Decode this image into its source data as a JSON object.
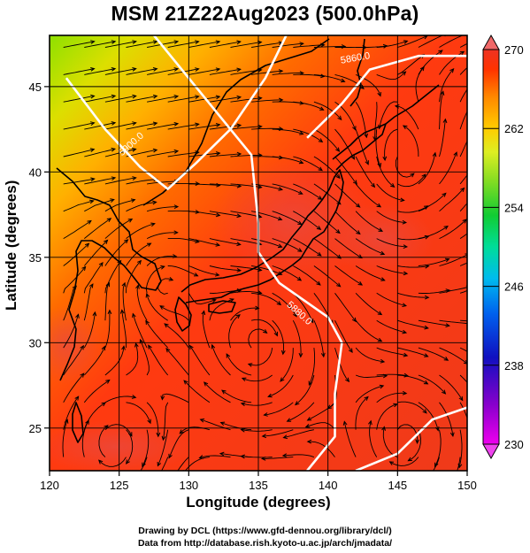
{
  "title": "MSM 21Z22Aug2023 (500.0hPa)",
  "x_axis": {
    "label": "Longitude (degrees)",
    "range": [
      120,
      150
    ],
    "ticks": [
      {
        "value": 120,
        "label": "120"
      },
      {
        "value": 125,
        "label": "125"
      },
      {
        "value": 130,
        "label": "130"
      },
      {
        "value": 135,
        "label": "135"
      },
      {
        "value": 140,
        "label": "140"
      },
      {
        "value": 145,
        "label": "145"
      },
      {
        "value": 150,
        "label": "150"
      }
    ]
  },
  "y_axis": {
    "label": "Latitude  (degrees)",
    "range": [
      22.5,
      48
    ],
    "ticks": [
      {
        "value": 25,
        "label": "25"
      },
      {
        "value": 30,
        "label": "30"
      },
      {
        "value": 35,
        "label": "35"
      },
      {
        "value": 40,
        "label": "40"
      },
      {
        "value": 45,
        "label": "45"
      }
    ]
  },
  "colorbar": {
    "range": [
      230,
      270
    ],
    "ticks": [
      {
        "value": 270,
        "label": "270"
      },
      {
        "value": 262,
        "label": "262"
      },
      {
        "value": 254,
        "label": "254"
      },
      {
        "value": 246,
        "label": "246"
      },
      {
        "value": 238,
        "label": "238"
      },
      {
        "value": 230,
        "label": "230"
      }
    ],
    "colors": [
      "#ee00ee",
      "#7700cc",
      "#1111cc",
      "#0055ee",
      "#00aaee",
      "#00ddaa",
      "#11cc44",
      "#77dd22",
      "#ccee22",
      "#ffcc00",
      "#ff8800",
      "#ff3300",
      "#ee3322"
    ]
  },
  "contours": [
    {
      "label": "5900.0",
      "path": [
        [
          121.2,
          45.5
        ],
        [
          124,
          42.5
        ],
        [
          126.5,
          40.3
        ],
        [
          128.5,
          39
        ],
        [
          130.5,
          40.5
        ],
        [
          133,
          42.5
        ],
        [
          135.5,
          45.5
        ],
        [
          137,
          48
        ]
      ]
    },
    {
      "label": "5880.0",
      "path": [
        [
          127.5,
          48
        ],
        [
          131.5,
          44
        ],
        [
          134.5,
          41
        ],
        [
          135,
          37
        ],
        [
          135,
          35.3
        ],
        [
          136.5,
          33.5
        ],
        [
          140,
          31.5
        ],
        [
          141,
          30
        ],
        [
          140.5,
          27
        ],
        [
          140.5,
          24.5
        ],
        [
          138.5,
          22.5
        ]
      ]
    },
    {
      "label": "5860.0",
      "path": [
        [
          138.5,
          42
        ],
        [
          141,
          44
        ],
        [
          143,
          46
        ],
        [
          146.5,
          46.8
        ],
        [
          150,
          46.8
        ]
      ]
    },
    {
      "label": "5880.0",
      "path": [
        [
          142,
          22.5
        ],
        [
          145,
          23.5
        ],
        [
          147.5,
          25.5
        ],
        [
          150,
          26.2
        ]
      ]
    }
  ],
  "contour_labels": [
    {
      "text": "5900.0",
      "lon": 126,
      "lat": 41.5,
      "rot": -42
    },
    {
      "text": "5880.0",
      "lon": 137.8,
      "lat": 31.6,
      "rot": 42
    },
    {
      "text": "5860.0",
      "lon": 142,
      "lat": 46.5,
      "rot": -10
    }
  ],
  "credits": {
    "line1": "Drawing by DCL (https://www.gfd-dennou.org/library/dcl/)",
    "line2": "Data from http://database.rish.kyoto-u.ac.jp/arch/jmadata/"
  }
}
